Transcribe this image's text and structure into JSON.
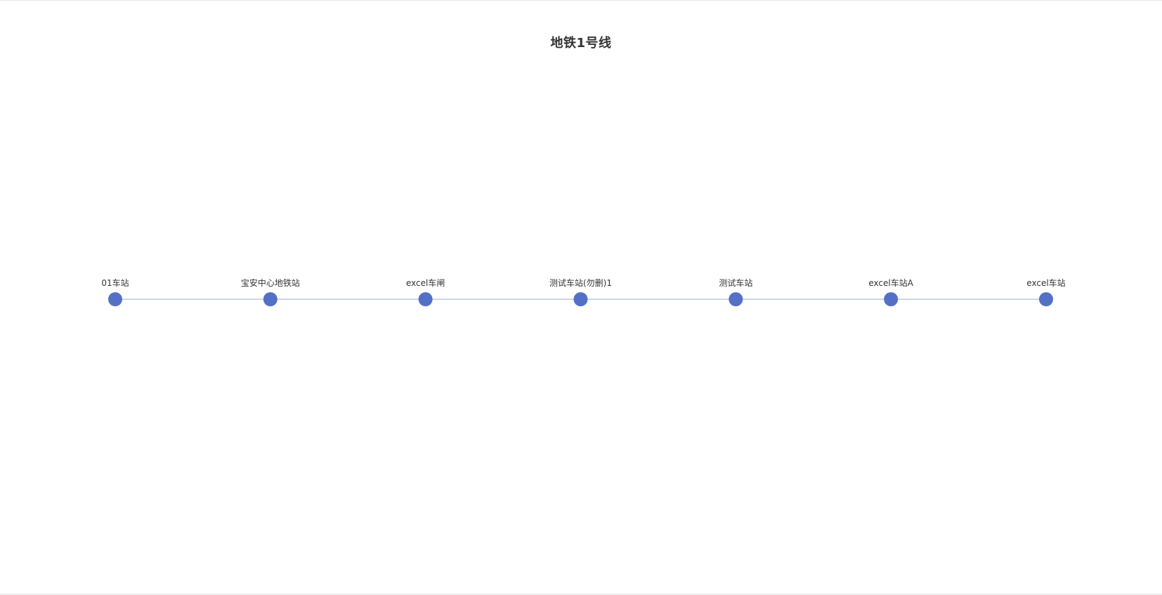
{
  "title": "地铁1号线",
  "colors": {
    "node": "#5470c6",
    "track": "#a9c0d8",
    "label": "#333333"
  },
  "stations": [
    {
      "label": "01车站"
    },
    {
      "label": "宝安中心地铁站"
    },
    {
      "label": "excel车闸"
    },
    {
      "label": "测试车站(勿删)1"
    },
    {
      "label": "测试车站"
    },
    {
      "label": "excel车站A"
    },
    {
      "label": "excel车站"
    }
  ]
}
